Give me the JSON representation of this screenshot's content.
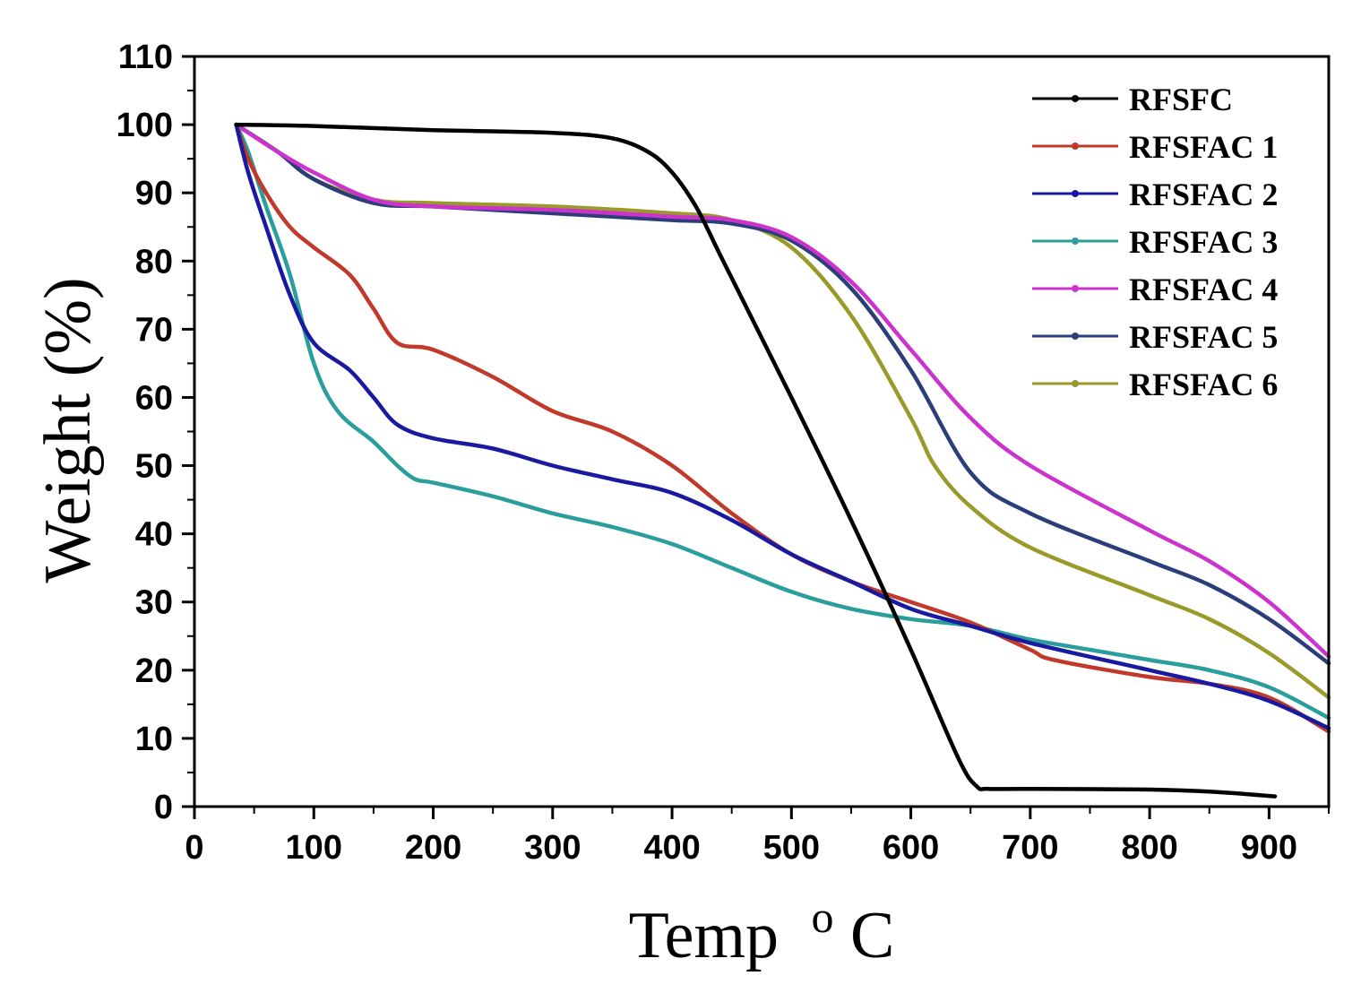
{
  "chart_data": {
    "type": "line",
    "title": "",
    "xlabel": "Temp",
    "xlabel_superscript": "o",
    "xlabel_unit": "C",
    "ylabel": "Weight (%)",
    "xlim": [
      0,
      950
    ],
    "ylim": [
      0,
      110
    ],
    "xticks": [
      0,
      100,
      200,
      300,
      400,
      500,
      600,
      700,
      800,
      900
    ],
    "yticks": [
      0,
      10,
      20,
      30,
      40,
      50,
      60,
      70,
      80,
      90,
      100,
      110
    ],
    "grid": false,
    "legend_position": "top-right",
    "series": [
      {
        "name": "RFSFC",
        "color": "#000000",
        "x": [
          35,
          100,
          200,
          300,
          350,
          380,
          400,
          420,
          440,
          460,
          500,
          550,
          600,
          640,
          655,
          665,
          700,
          800,
          850,
          905
        ],
        "y": [
          100,
          99.8,
          99.2,
          98.8,
          98,
          96,
          93,
          88,
          81,
          74,
          60,
          42,
          23,
          7,
          3,
          2.6,
          2.6,
          2.5,
          2.2,
          1.5
        ]
      },
      {
        "name": "RFSFAC 1",
        "color": "#c0392b",
        "x": [
          35,
          45,
          60,
          80,
          100,
          130,
          150,
          170,
          200,
          250,
          300,
          350,
          400,
          450,
          500,
          550,
          600,
          650,
          700,
          720,
          800,
          850,
          900,
          950
        ],
        "y": [
          100,
          95,
          90,
          85,
          82,
          78,
          73,
          68,
          67,
          63,
          58,
          55,
          50,
          43,
          37,
          33,
          30,
          27,
          23,
          21.5,
          19,
          18,
          16,
          11
        ]
      },
      {
        "name": "RFSFAC 2",
        "color": "#1a1aa0",
        "x": [
          35,
          45,
          60,
          80,
          100,
          130,
          150,
          170,
          200,
          250,
          300,
          350,
          400,
          450,
          500,
          550,
          600,
          650,
          700,
          800,
          850,
          900,
          950
        ],
        "y": [
          100,
          93,
          85,
          75,
          68,
          64,
          60,
          56,
          54,
          52.5,
          50,
          48,
          46,
          42,
          37,
          33,
          29,
          26.5,
          24,
          20,
          18,
          15.5,
          11.5
        ]
      },
      {
        "name": "RFSFAC 3",
        "color": "#2a9d9d",
        "x": [
          35,
          45,
          60,
          80,
          100,
          120,
          150,
          170,
          185,
          200,
          250,
          300,
          350,
          400,
          450,
          500,
          550,
          600,
          650,
          700,
          750,
          800,
          850,
          900,
          950
        ],
        "y": [
          100,
          96,
          88,
          78,
          65,
          58,
          53.5,
          50,
          48,
          47.5,
          45.5,
          43,
          41,
          38.5,
          35,
          31.5,
          29,
          27.5,
          26.5,
          24.5,
          23,
          21.5,
          20,
          17.5,
          13
        ]
      },
      {
        "name": "RFSFAC 4",
        "color": "#cc33cc",
        "x": [
          35,
          70,
          100,
          150,
          200,
          300,
          400,
          450,
          500,
          550,
          600,
          650,
          700,
          800,
          850,
          900,
          950
        ],
        "y": [
          100,
          96,
          93,
          89,
          88,
          87.5,
          86.5,
          86,
          83.5,
          77,
          67,
          57,
          50,
          40.5,
          36,
          30,
          22
        ]
      },
      {
        "name": "RFSFAC 5",
        "color": "#2c3e7a",
        "x": [
          35,
          70,
          100,
          150,
          200,
          300,
          400,
          450,
          500,
          550,
          600,
          650,
          700,
          800,
          850,
          900,
          950
        ],
        "y": [
          100,
          96,
          92,
          88.5,
          88,
          87,
          86,
          85.5,
          83,
          76,
          64,
          49,
          43,
          36,
          32.5,
          27.5,
          21
        ]
      },
      {
        "name": "RFSFAC 6",
        "color": "#9a9a2a",
        "x": [
          35,
          70,
          100,
          150,
          200,
          300,
          400,
          450,
          500,
          550,
          600,
          620,
          650,
          700,
          800,
          850,
          900,
          950
        ],
        "y": [
          100,
          96,
          92,
          89,
          88.5,
          88,
          87,
          86,
          82,
          72,
          57,
          50,
          44,
          38,
          31,
          27.5,
          22.5,
          16
        ]
      }
    ]
  }
}
